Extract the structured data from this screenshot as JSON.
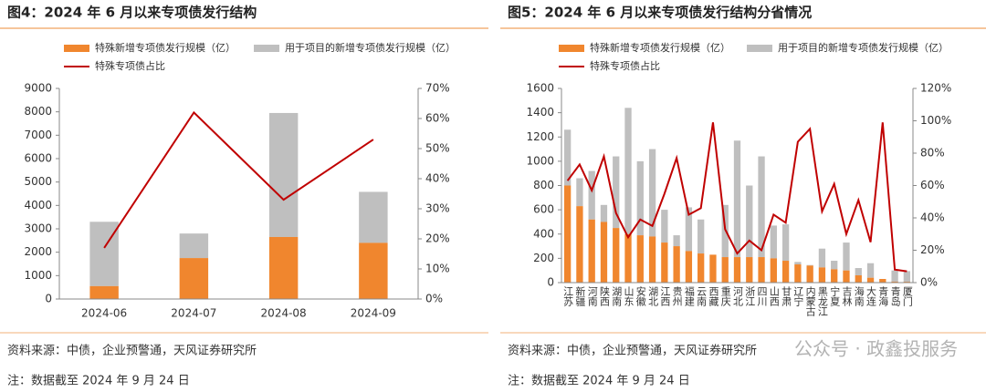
{
  "chart_data": [
    {
      "type": "bar_line",
      "title": "图4：2024 年 6 月以来专项债发行结构",
      "categories": [
        "2024-06",
        "2024-07",
        "2024-08",
        "2024-09"
      ],
      "series": [
        {
          "name": "特殊新增专项债发行规模（亿）",
          "color": "#f0862e",
          "mark": "bar",
          "values": [
            550,
            1750,
            2650,
            2400
          ]
        },
        {
          "name": "用于项目的新增专项债发行规模（亿）",
          "color": "#bfbfbf",
          "mark": "bar",
          "values": [
            2750,
            1050,
            5300,
            2180
          ]
        },
        {
          "name": "特殊专项债占比",
          "color": "#c00000",
          "mark": "line",
          "axis": "y2",
          "values": [
            17,
            62,
            33,
            53
          ]
        }
      ],
      "ylim": [
        0,
        9000
      ],
      "yticks": [
        0,
        1000,
        2000,
        3000,
        4000,
        5000,
        6000,
        7000,
        8000,
        9000
      ],
      "y2lim": [
        0,
        70
      ],
      "y2ticks": [
        {
          "value": 0,
          "label": "0%"
        },
        {
          "value": 10,
          "label": "10%"
        },
        {
          "value": 20,
          "label": "20%"
        },
        {
          "value": 30,
          "label": "30%"
        },
        {
          "value": 40,
          "label": "40%"
        },
        {
          "value": 50,
          "label": "50%"
        },
        {
          "value": 60,
          "label": "60%"
        },
        {
          "value": 70,
          "label": "70%"
        }
      ],
      "source": "资料来源：中债，企业预警通，天风证券研究所",
      "note": "注：数据截至 2024 年 9 月 24 日"
    },
    {
      "type": "bar_line",
      "title": "图5：2024 年 6 月以来专项债发行结构分省情况",
      "categories": [
        "江苏",
        "新疆",
        "河南",
        "陕西",
        "湖南",
        "山东",
        "安徽",
        "湖北",
        "江西",
        "贵州",
        "福建",
        "云南",
        "西藏",
        "重庆",
        "河北",
        "浙江",
        "四川",
        "山西",
        "甘肃",
        "辽宁",
        "内蒙古",
        "黑龙江",
        "宁夏",
        "吉林",
        "海南",
        "大连",
        "青海",
        "青岛",
        "厦门"
      ],
      "series": [
        {
          "name": "特殊新增专项债发行规模（亿）",
          "color": "#f0862e",
          "mark": "bar",
          "values": [
            800,
            630,
            520,
            500,
            450,
            400,
            390,
            380,
            330,
            300,
            260,
            240,
            230,
            210,
            210,
            210,
            210,
            200,
            180,
            150,
            140,
            125,
            110,
            100,
            60,
            40,
            30,
            8,
            7
          ]
        },
        {
          "name": "用于项目的新增专项债发行规模（亿）",
          "color": "#bfbfbf",
          "mark": "bar",
          "values": [
            460,
            230,
            400,
            140,
            590,
            1040,
            610,
            720,
            270,
            90,
            360,
            280,
            0,
            430,
            960,
            590,
            830,
            270,
            300,
            20,
            5,
            155,
            70,
            230,
            60,
            120,
            0,
            92,
            88
          ]
        },
        {
          "name": "特殊专项债占比",
          "color": "#c00000",
          "mark": "line",
          "axis": "y2",
          "values": [
            63,
            73,
            57,
            78,
            43,
            28,
            39,
            35,
            55,
            77,
            42,
            46,
            99,
            33,
            18,
            26,
            20,
            42,
            37,
            87,
            95,
            44,
            61,
            30,
            51,
            25,
            99,
            8,
            7
          ]
        }
      ],
      "ylim": [
        0,
        1600
      ],
      "yticks": [
        0,
        200,
        400,
        600,
        800,
        1000,
        1200,
        1400,
        1600
      ],
      "y2lim": [
        0,
        120
      ],
      "y2ticks": [
        {
          "value": 0,
          "label": "0%"
        },
        {
          "value": 20,
          "label": "20%"
        },
        {
          "value": 40,
          "label": "40%"
        },
        {
          "value": 60,
          "label": "60%"
        },
        {
          "value": 80,
          "label": "80%"
        },
        {
          "value": 100,
          "label": "100%"
        },
        {
          "value": 120,
          "label": "120%"
        }
      ],
      "source": "资料来源：中债，企业预警通，天风证券研究所",
      "note": "注：数据截至 2024 年 9 月 24 日"
    }
  ],
  "watermark": "公众号 · 政鑫投服务"
}
